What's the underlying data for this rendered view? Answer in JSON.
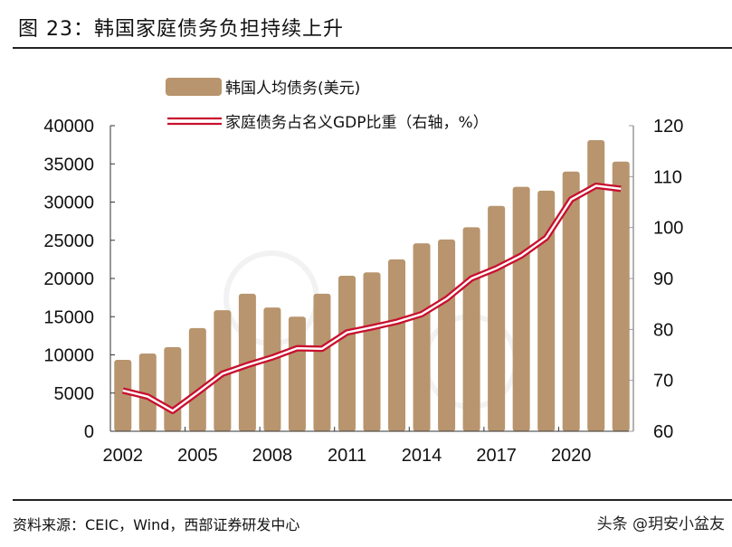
{
  "header": {
    "title": "图 23：韩国家庭债务负担持续上升"
  },
  "footer": {
    "source": "资料来源：CEIC，Wind，西部证券研发中心",
    "credit": "头条 @玥安小盆友"
  },
  "colors": {
    "bar": "#b8956e",
    "line": "#c8102e",
    "axis": "#555555"
  },
  "chart_data": {
    "type": "bar+line",
    "title": "韩国家庭债务负担持续上升",
    "categories": [
      "2002",
      "2003",
      "2004",
      "2005",
      "2006",
      "2007",
      "2008",
      "2009",
      "2010",
      "2011",
      "2012",
      "2013",
      "2014",
      "2015",
      "2016",
      "2017",
      "2018",
      "2019",
      "2020",
      "2021",
      "2022"
    ],
    "xtick_labels": [
      "2002",
      "2005",
      "2008",
      "2011",
      "2014",
      "2017",
      "2020"
    ],
    "series": [
      {
        "name": "韩国人均债务(美元)",
        "type": "bar",
        "axis": "left",
        "values": [
          9350,
          10180,
          11000,
          13500,
          15850,
          18000,
          16200,
          15000,
          18000,
          20350,
          20800,
          22500,
          24600,
          25100,
          26700,
          29500,
          32000,
          31500,
          34000,
          38100,
          35300
        ]
      },
      {
        "name": "家庭债务占名义GDP比重（右轴，%）",
        "type": "line",
        "axis": "right",
        "values": [
          68.0,
          66.8,
          64.0,
          67.6,
          71.3,
          73.0,
          74.5,
          76.3,
          76.2,
          79.4,
          80.4,
          81.5,
          83.0,
          86.0,
          90.0,
          92.0,
          94.5,
          98.0,
          105.5,
          108.2,
          107.6
        ]
      }
    ],
    "left_axis": {
      "min": 0,
      "max": 40000,
      "ticks": [
        0,
        5000,
        10000,
        15000,
        20000,
        25000,
        30000,
        35000,
        40000
      ]
    },
    "right_axis": {
      "min": 60,
      "max": 120,
      "ticks": [
        60,
        70,
        80,
        90,
        100,
        110,
        120
      ]
    },
    "legend_position": "top-center",
    "grid": false
  }
}
